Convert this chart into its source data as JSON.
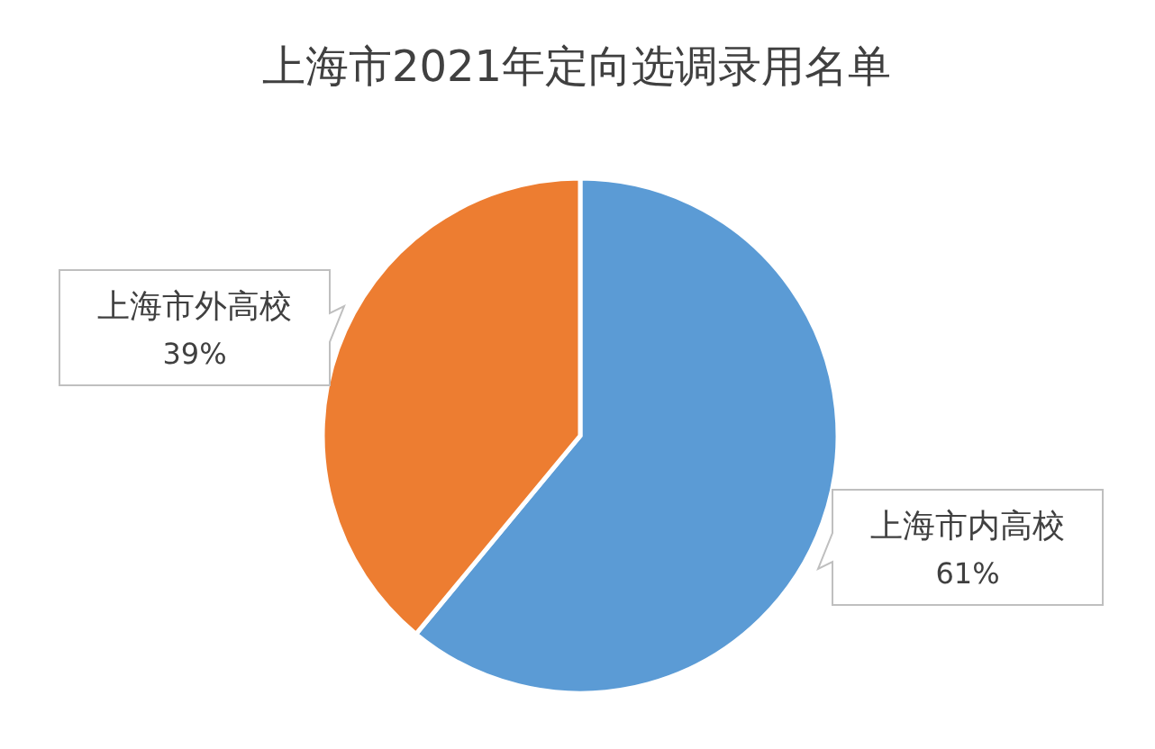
{
  "chart_data": {
    "type": "pie",
    "title": "上海市2021年定向选调录用名单",
    "categories": [
      "上海市内高校",
      "上海市外高校"
    ],
    "values": [
      61,
      39
    ],
    "value_labels": [
      "61%",
      "39%"
    ],
    "colors": [
      "#5b9bd5",
      "#ed7d31"
    ]
  }
}
